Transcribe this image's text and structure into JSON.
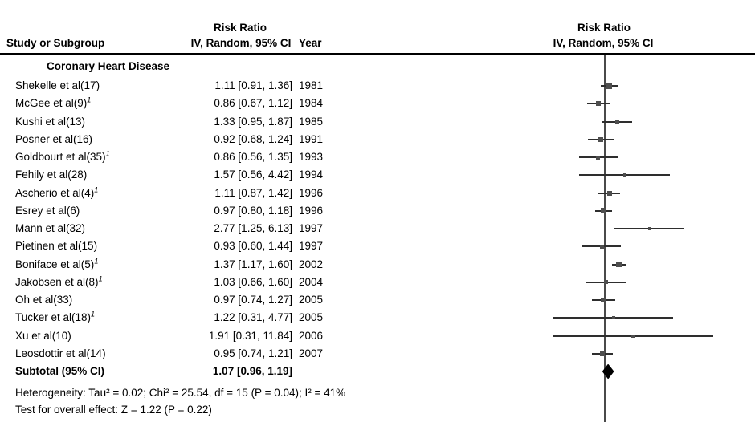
{
  "header": {
    "study_col": "Study or Subgroup",
    "effect_title": "Risk Ratio",
    "effect_col": "IV, Random, 95% CI",
    "year_col": "Year",
    "plot_title": "Risk Ratio",
    "plot_col": "IV, Random, 95% CI"
  },
  "subgroup_title": "Coronary Heart Disease",
  "chart_data": {
    "type": "forest",
    "scale": "log",
    "null_line": 1,
    "effect_measure": "Risk Ratio",
    "model": "IV, Random, 95% CI",
    "rows": [
      {
        "study": "Shekelle et al(17)",
        "sup": "",
        "effect": "1.11 [0.91, 1.36]",
        "rr": 1.11,
        "lo": 0.91,
        "hi": 1.36,
        "year": "1981",
        "marker": 7
      },
      {
        "study": "McGee et al(9)",
        "sup": "1",
        "effect": "0.86 [0.67, 1.12]",
        "rr": 0.86,
        "lo": 0.67,
        "hi": 1.12,
        "year": "1984",
        "marker": 6
      },
      {
        "study": "Kushi et al(13)",
        "sup": "",
        "effect": "1.33 [0.95, 1.87]",
        "rr": 1.33,
        "lo": 0.95,
        "hi": 1.87,
        "year": "1985",
        "marker": 5
      },
      {
        "study": "Posner et al(16)",
        "sup": "",
        "effect": "0.92 [0.68, 1.24]",
        "rr": 0.92,
        "lo": 0.68,
        "hi": 1.24,
        "year": "1991",
        "marker": 6
      },
      {
        "study": "Goldbourt et al(35)",
        "sup": "1",
        "effect": "0.86 [0.56, 1.35]",
        "rr": 0.86,
        "lo": 0.56,
        "hi": 1.35,
        "year": "1993",
        "marker": 5
      },
      {
        "study": "Fehily et al(28)",
        "sup": "",
        "effect": "1.57 [0.56, 4.42]",
        "rr": 1.57,
        "lo": 0.56,
        "hi": 4.42,
        "year": "1994",
        "marker": 4
      },
      {
        "study": "Ascherio et al(4)",
        "sup": "1",
        "effect": "1.11 [0.87, 1.42]",
        "rr": 1.11,
        "lo": 0.87,
        "hi": 1.42,
        "year": "1996",
        "marker": 6
      },
      {
        "study": "Esrey et al(6)",
        "sup": "",
        "effect": "0.97 [0.80, 1.18]",
        "rr": 0.97,
        "lo": 0.8,
        "hi": 1.18,
        "year": "1996",
        "marker": 7
      },
      {
        "study": "Mann et al(32)",
        "sup": "",
        "effect": "2.77 [1.25, 6.13]",
        "rr": 2.77,
        "lo": 1.25,
        "hi": 6.13,
        "year": "1997",
        "marker": 4
      },
      {
        "study": "Pietinen et al(15)",
        "sup": "",
        "effect": "0.93 [0.60, 1.44]",
        "rr": 0.93,
        "lo": 0.6,
        "hi": 1.44,
        "year": "1997",
        "marker": 5
      },
      {
        "study": "Boniface et al(5)",
        "sup": "1",
        "effect": "1.37 [1.17, 1.60]",
        "rr": 1.37,
        "lo": 1.17,
        "hi": 1.6,
        "year": "2002",
        "marker": 7
      },
      {
        "study": "Jakobsen et al(8)",
        "sup": "1",
        "effect": "1.03 [0.66, 1.60]",
        "rr": 1.03,
        "lo": 0.66,
        "hi": 1.6,
        "year": "2004",
        "marker": 5
      },
      {
        "study": "Oh et al(33)",
        "sup": "",
        "effect": "0.97 [0.74, 1.27]",
        "rr": 0.97,
        "lo": 0.74,
        "hi": 1.27,
        "year": "2005",
        "marker": 6
      },
      {
        "study": "Tucker et al(18)",
        "sup": "1",
        "effect": "1.22 [0.31, 4.77]",
        "rr": 1.22,
        "lo": 0.31,
        "hi": 4.77,
        "year": "2005",
        "marker": 4
      },
      {
        "study": "Xu et al(10)",
        "sup": "",
        "effect": "1.91 [0.31, 11.84]",
        "rr": 1.91,
        "lo": 0.31,
        "hi": 11.84,
        "year": "2006",
        "marker": 4
      },
      {
        "study": "Leosdottir et al(14)",
        "sup": "",
        "effect": "0.95 [0.74, 1.21]",
        "rr": 0.95,
        "lo": 0.74,
        "hi": 1.21,
        "year": "2007",
        "marker": 6
      }
    ],
    "subtotal": {
      "label": "Subtotal (95% CI)",
      "effect": "1.07 [0.96, 1.19]",
      "rr": 1.07,
      "lo": 0.96,
      "hi": 1.19
    }
  },
  "footer": {
    "heterogeneity": "Heterogeneity: Tau² = 0.02; Chi² = 25.54, df = 15 (P = 0.04); I² = 41%",
    "overall_effect": "Test for overall effect: Z = 1.22 (P = 0.22)"
  },
  "colors": {
    "text": "#000000",
    "ci_line": "#2e2e2e",
    "marker": "#4e4e4e",
    "axis_line": "#4a4a4a",
    "diamond": "#000000",
    "divider": "#000000"
  }
}
